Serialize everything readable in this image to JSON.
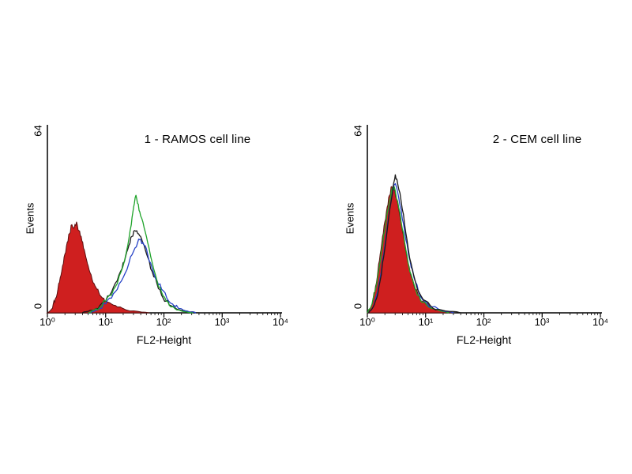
{
  "figure": {
    "background": "#ffffff",
    "axis_color": "#000000"
  },
  "chart_data": [
    {
      "type": "area",
      "subtype": "flow-cytometry-histogram",
      "title": "1 - RAMOS cell line",
      "xlabel": "FL2-Height",
      "ylabel": "Events",
      "x_scale": "log10",
      "xlim_log10": [
        0,
        4
      ],
      "ylim": [
        0,
        64
      ],
      "x_tick_labels": [
        "10⁰",
        "10¹",
        "10²",
        "10³",
        "10⁴"
      ],
      "y_tick_labels": [
        "0",
        "64"
      ],
      "grid": false,
      "legend": false,
      "series": [
        {
          "name": "control-red-filled",
          "style": "filled",
          "color": "#cf1f1f",
          "outline": "#5a1010",
          "points": [
            [
              0.0,
              0
            ],
            [
              0.06,
              1
            ],
            [
              0.1,
              3
            ],
            [
              0.14,
              5
            ],
            [
              0.18,
              8
            ],
            [
              0.22,
              12
            ],
            [
              0.26,
              16
            ],
            [
              0.3,
              20
            ],
            [
              0.34,
              24
            ],
            [
              0.38,
              27
            ],
            [
              0.42,
              30
            ],
            [
              0.46,
              29
            ],
            [
              0.5,
              31
            ],
            [
              0.54,
              28
            ],
            [
              0.58,
              26
            ],
            [
              0.62,
              22
            ],
            [
              0.66,
              19
            ],
            [
              0.7,
              16
            ],
            [
              0.75,
              13
            ],
            [
              0.8,
              10
            ],
            [
              0.85,
              8
            ],
            [
              0.9,
              6
            ],
            [
              0.95,
              5
            ],
            [
              1.0,
              4
            ],
            [
              1.1,
              3
            ],
            [
              1.2,
              2
            ],
            [
              1.35,
              1
            ],
            [
              1.55,
              0.5
            ],
            [
              1.75,
              0
            ]
          ]
        },
        {
          "name": "stained-black-outline",
          "style": "line",
          "color": "#1a1a1a",
          "points": [
            [
              0.6,
              0
            ],
            [
              0.7,
              0.5
            ],
            [
              0.8,
              1
            ],
            [
              0.9,
              2.5
            ],
            [
              1.0,
              4
            ],
            [
              1.1,
              7
            ],
            [
              1.2,
              11
            ],
            [
              1.28,
              15
            ],
            [
              1.34,
              19
            ],
            [
              1.4,
              23
            ],
            [
              1.45,
              26
            ],
            [
              1.5,
              28
            ],
            [
              1.55,
              27
            ],
            [
              1.6,
              26
            ],
            [
              1.66,
              23
            ],
            [
              1.72,
              19
            ],
            [
              1.8,
              14
            ],
            [
              1.88,
              10
            ],
            [
              1.96,
              6
            ],
            [
              2.04,
              4
            ],
            [
              2.12,
              2.5
            ],
            [
              2.2,
              1.5
            ],
            [
              2.3,
              0.8
            ],
            [
              2.45,
              0.3
            ],
            [
              2.6,
              0
            ]
          ]
        },
        {
          "name": "stained-blue-outline",
          "style": "line",
          "color": "#2743c7",
          "points": [
            [
              0.7,
              0
            ],
            [
              0.8,
              0.5
            ],
            [
              0.9,
              1.5
            ],
            [
              1.0,
              3
            ],
            [
              1.1,
              5
            ],
            [
              1.2,
              8
            ],
            [
              1.3,
              12
            ],
            [
              1.4,
              17
            ],
            [
              1.48,
              21
            ],
            [
              1.55,
              24
            ],
            [
              1.6,
              25
            ],
            [
              1.66,
              23
            ],
            [
              1.72,
              20
            ],
            [
              1.8,
              15
            ],
            [
              1.88,
              11
            ],
            [
              1.96,
              8
            ],
            [
              2.05,
              5
            ],
            [
              2.15,
              3
            ],
            [
              2.25,
              1.5
            ],
            [
              2.4,
              0.6
            ],
            [
              2.55,
              0
            ]
          ]
        },
        {
          "name": "stained-green-outline",
          "style": "line",
          "color": "#1fa32a",
          "points": [
            [
              0.7,
              0
            ],
            [
              0.8,
              1
            ],
            [
              0.9,
              2
            ],
            [
              1.0,
              4
            ],
            [
              1.1,
              6
            ],
            [
              1.2,
              10
            ],
            [
              1.3,
              16
            ],
            [
              1.38,
              23
            ],
            [
              1.44,
              30
            ],
            [
              1.48,
              36
            ],
            [
              1.52,
              40
            ],
            [
              1.56,
              37
            ],
            [
              1.6,
              33
            ],
            [
              1.66,
              29
            ],
            [
              1.72,
              24
            ],
            [
              1.8,
              17
            ],
            [
              1.88,
              11
            ],
            [
              1.96,
              7
            ],
            [
              2.04,
              4
            ],
            [
              2.12,
              2
            ],
            [
              2.22,
              1
            ],
            [
              2.35,
              0.4
            ],
            [
              2.5,
              0
            ]
          ]
        }
      ]
    },
    {
      "type": "area",
      "subtype": "flow-cytometry-histogram",
      "title": "2 - CEM cell line",
      "xlabel": "FL2-Height",
      "ylabel": "Events",
      "x_scale": "log10",
      "xlim_log10": [
        0,
        4
      ],
      "ylim": [
        0,
        64
      ],
      "x_tick_labels": [
        "10⁰",
        "10¹",
        "10²",
        "10³",
        "10⁴"
      ],
      "y_tick_labels": [
        "0",
        "64"
      ],
      "grid": false,
      "legend": false,
      "series": [
        {
          "name": "control-red-filled",
          "style": "filled",
          "color": "#cf1f1f",
          "outline": "#5a1010",
          "points": [
            [
              0.0,
              0
            ],
            [
              0.06,
              2
            ],
            [
              0.1,
              5
            ],
            [
              0.14,
              9
            ],
            [
              0.18,
              14
            ],
            [
              0.22,
              20
            ],
            [
              0.26,
              26
            ],
            [
              0.3,
              31
            ],
            [
              0.34,
              36
            ],
            [
              0.38,
              40
            ],
            [
              0.42,
              43
            ],
            [
              0.46,
              42
            ],
            [
              0.5,
              39
            ],
            [
              0.55,
              34
            ],
            [
              0.6,
              28
            ],
            [
              0.65,
              22
            ],
            [
              0.7,
              17
            ],
            [
              0.76,
              12
            ],
            [
              0.82,
              8
            ],
            [
              0.9,
              5
            ],
            [
              1.0,
              3
            ],
            [
              1.1,
              1.5
            ],
            [
              1.25,
              0.6
            ],
            [
              1.45,
              0
            ]
          ]
        },
        {
          "name": "stained-green-outline",
          "style": "line",
          "color": "#1fa32a",
          "points": [
            [
              0.0,
              0
            ],
            [
              0.08,
              3
            ],
            [
              0.14,
              8
            ],
            [
              0.2,
              15
            ],
            [
              0.26,
              23
            ],
            [
              0.32,
              31
            ],
            [
              0.38,
              38
            ],
            [
              0.42,
              42
            ],
            [
              0.46,
              43
            ],
            [
              0.52,
              38
            ],
            [
              0.58,
              31
            ],
            [
              0.64,
              24
            ],
            [
              0.7,
              17
            ],
            [
              0.78,
              11
            ],
            [
              0.86,
              6
            ],
            [
              0.95,
              3.5
            ],
            [
              1.05,
              2
            ],
            [
              1.2,
              1
            ],
            [
              1.4,
              0
            ]
          ]
        },
        {
          "name": "stained-blue-outline",
          "style": "line",
          "color": "#2743c7",
          "points": [
            [
              0.02,
              0
            ],
            [
              0.1,
              2
            ],
            [
              0.16,
              6
            ],
            [
              0.22,
              12
            ],
            [
              0.28,
              20
            ],
            [
              0.34,
              29
            ],
            [
              0.4,
              37
            ],
            [
              0.44,
              42
            ],
            [
              0.48,
              44
            ],
            [
              0.54,
              39
            ],
            [
              0.6,
              32
            ],
            [
              0.66,
              25
            ],
            [
              0.73,
              18
            ],
            [
              0.8,
              12
            ],
            [
              0.88,
              7
            ],
            [
              0.98,
              4
            ],
            [
              1.1,
              2
            ],
            [
              1.28,
              0.8
            ],
            [
              1.48,
              0
            ]
          ]
        },
        {
          "name": "stained-black-outline",
          "style": "line",
          "color": "#1a1a1a",
          "points": [
            [
              0.02,
              0
            ],
            [
              0.1,
              2
            ],
            [
              0.16,
              5
            ],
            [
              0.22,
              11
            ],
            [
              0.28,
              19
            ],
            [
              0.34,
              28
            ],
            [
              0.4,
              37
            ],
            [
              0.45,
              44
            ],
            [
              0.48,
              47
            ],
            [
              0.52,
              44
            ],
            [
              0.58,
              38
            ],
            [
              0.64,
              30
            ],
            [
              0.7,
              22
            ],
            [
              0.78,
              14
            ],
            [
              0.86,
              8
            ],
            [
              0.96,
              4.5
            ],
            [
              1.08,
              2.5
            ],
            [
              1.22,
              1.2
            ],
            [
              1.4,
              0.5
            ],
            [
              1.6,
              0
            ]
          ]
        }
      ]
    }
  ]
}
